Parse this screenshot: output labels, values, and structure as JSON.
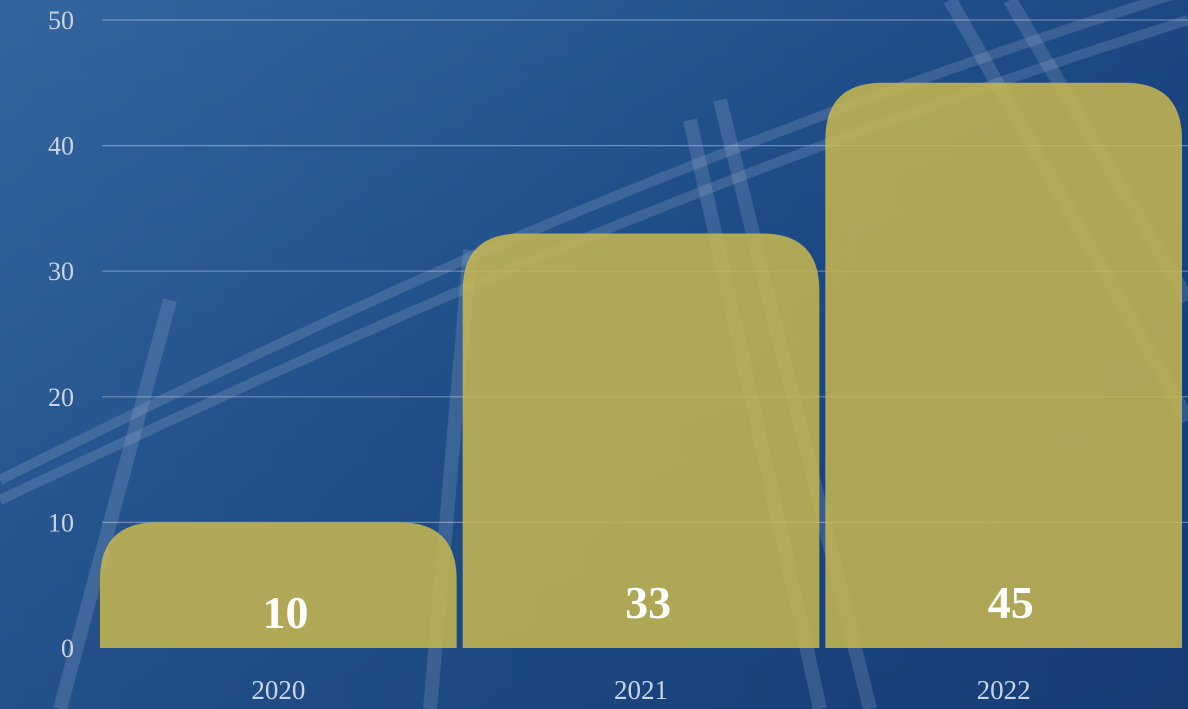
{
  "chart_data": {
    "type": "bar",
    "title": "",
    "xlabel": "",
    "ylabel": "",
    "categories": [
      "2020",
      "2021",
      "2022"
    ],
    "values": [
      10,
      33,
      45
    ],
    "data_labels": [
      "10",
      "33",
      "45"
    ],
    "ylim": [
      0,
      50
    ],
    "yticks": [
      "0",
      "10",
      "20",
      "30",
      "40",
      "50"
    ],
    "grid": true,
    "legend": "none",
    "colors": {
      "bar": "#c9b84f",
      "background": "#1f4d86",
      "gridline": "#c8d7eb",
      "tick_text": "#c9d5e6",
      "data_label": "#ffffff"
    }
  }
}
